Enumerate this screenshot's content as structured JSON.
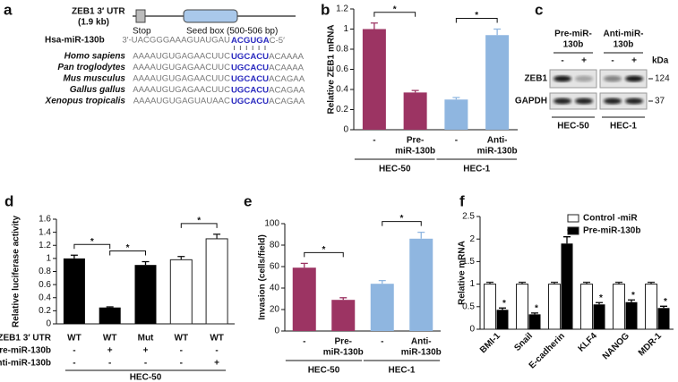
{
  "panel_a": {
    "letter": "a",
    "utr": {
      "name": "ZEB1 3′ UTR",
      "size": "(1.9  kb)",
      "stop": "Stop",
      "seed_box": "Seed box (500-506 bp)"
    },
    "mirna": {
      "name": "Hsa-miR-130b",
      "pre": "3′-UACGGGAAAGUAUGAU",
      "seed": "ACGUGA",
      "post": "C-5′"
    },
    "species": [
      {
        "name": "Homo sapiens",
        "pre": "AAAAUGUGAGAACUUC",
        "seed": "UGCACU",
        "post": "ACAAAA"
      },
      {
        "name": "Pan troglodytes",
        "pre": "AAAAUGUGAGAACUUC",
        "seed": "UGCACU",
        "post": "ACAAAA"
      },
      {
        "name": "Mus musculus",
        "pre": "AAAAUGUGAGAACUUC",
        "seed": "UGCACU",
        "post": "ACAGAA"
      },
      {
        "name": "Gallus gallus",
        "pre": "AAAAUGUGAGAACUUC",
        "seed": "UGCACU",
        "post": "ACAGAA"
      },
      {
        "name": "Xenopus tropicalis",
        "pre": "AAAAUGUGAGUAUAAC",
        "seed": "UGCACU",
        "post": "ACAGAA"
      }
    ]
  },
  "panel_c": {
    "letter": "c",
    "treatments": [
      [
        "Pre-miR-",
        "130b"
      ],
      [
        "Anti-miR-",
        "130b"
      ]
    ],
    "lanes": [
      "-",
      "+",
      "-",
      "+"
    ],
    "kda_unit": "kDa",
    "blots": [
      {
        "protein": "ZEB1",
        "kda": 124
      },
      {
        "protein": "GAPDH",
        "kda": 37
      }
    ],
    "cell_lines": [
      "HEC-50",
      "HEC-1"
    ]
  },
  "chart_data": [
    {
      "type": "bar",
      "panel": "b",
      "ylabel": "Relative ZEB1 mRNA",
      "categories": [
        [
          "-"
        ],
        [
          "Pre-",
          "miR-130b"
        ],
        [
          "-"
        ],
        [
          "Anti-",
          "miR-130b"
        ]
      ],
      "groups": [
        "HEC-50",
        "HEC-1"
      ],
      "values": [
        1.0,
        0.37,
        0.3,
        0.94
      ],
      "errors": [
        0.06,
        0.02,
        0.02,
        0.06
      ],
      "colors": [
        "#9c3463",
        "#9c3463",
        "#8fb6e0",
        "#8fb6e0"
      ],
      "ylim": [
        0,
        1.2
      ],
      "yticks": [
        0,
        0.2,
        0.4,
        0.6,
        0.8,
        1,
        1.2
      ],
      "annotations": [
        "*",
        "*"
      ]
    },
    {
      "type": "bar",
      "panel": "d",
      "ylabel": "Relative luciferase activity",
      "conditions": [
        {
          "name": "ZEB1 3′ UTR",
          "values": [
            "WT",
            "WT",
            "Mut",
            "WT",
            "WT"
          ]
        },
        {
          "name": "Pre-miR-130b",
          "values": [
            "-",
            "+",
            "+",
            "-",
            "-"
          ]
        },
        {
          "name": "Anti-miR-130b",
          "values": [
            "-",
            "-",
            "-",
            "-",
            "+"
          ]
        }
      ],
      "group": "HEC-50",
      "values": [
        1.0,
        0.25,
        0.9,
        0.98,
        1.3
      ],
      "errors": [
        0.05,
        0.01,
        0.05,
        0.05,
        0.07
      ],
      "colors": [
        "#000000",
        "#000000",
        "#000000",
        "#ffffff",
        "#ffffff"
      ],
      "ylim": [
        0,
        1.6
      ],
      "yticks": [
        0,
        0.2,
        0.4,
        0.6,
        0.8,
        1,
        1.2,
        1.4,
        1.6
      ],
      "annotations": [
        "*",
        "*",
        "*"
      ]
    },
    {
      "type": "bar",
      "panel": "e",
      "ylabel": "Invasion (cells/field)",
      "categories": [
        [
          "-"
        ],
        [
          "Pre-",
          "miR-130b"
        ],
        [
          "-"
        ],
        [
          "Anti-",
          "miR-130b"
        ]
      ],
      "groups": [
        "HEC-50",
        "HEC-1"
      ],
      "values": [
        59,
        29,
        44,
        86
      ],
      "errors": [
        4,
        2,
        3,
        6
      ],
      "colors": [
        "#9c3463",
        "#9c3463",
        "#8fb6e0",
        "#8fb6e0"
      ],
      "ylim": [
        0,
        100
      ],
      "yticks": [
        0,
        20,
        40,
        60,
        80,
        100
      ],
      "annotations": [
        "*",
        "*"
      ]
    },
    {
      "type": "grouped_bar",
      "panel": "f",
      "ylabel": "Relative mRNA",
      "categories": [
        "BMI-1",
        "Snail",
        "E-cadherin",
        "KLF4",
        "NANOG",
        "MDR-1"
      ],
      "series": [
        {
          "name": "Control -miR",
          "color": "#ffffff",
          "values": [
            1,
            1,
            1,
            1,
            1,
            1
          ],
          "errors": [
            0.04,
            0.04,
            0.04,
            0.04,
            0.04,
            0.04
          ]
        },
        {
          "name": "Pre-miR-130b",
          "color": "#000000",
          "values": [
            0.43,
            0.33,
            1.9,
            0.55,
            0.6,
            0.47
          ],
          "errors": [
            0.04,
            0.03,
            0.15,
            0.04,
            0.05,
            0.04
          ]
        }
      ],
      "ylim": [
        0,
        2.5
      ],
      "yticks": [
        0,
        0.5,
        1,
        1.5,
        2,
        2.5
      ],
      "legend": "top-right",
      "annotations": [
        "*",
        "*",
        "*",
        "*",
        "*",
        "*"
      ]
    }
  ]
}
